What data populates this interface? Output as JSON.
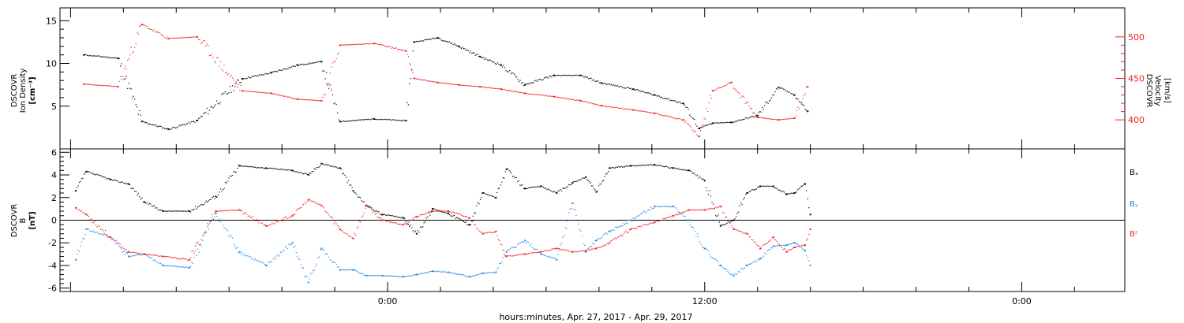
{
  "x_axis": {
    "title": "hours:minutes, Apr. 27, 2017 - Apr. 29, 2017",
    "range_hours": [
      -12.4,
      27.9
    ],
    "tick_labels": [
      {
        "hour": 0,
        "label": "0:00"
      },
      {
        "hour": 12,
        "label": "12:00"
      },
      {
        "hour": 24,
        "label": "0:00"
      }
    ]
  },
  "colors": {
    "black": "#000000",
    "red": "#ee2222",
    "blue": "#1e88e5"
  },
  "chart_data": [
    {
      "type": "scatter",
      "panel": "plasma",
      "left_axis": {
        "label_lines": [
          "DSCOVR",
          "Ion Density",
          "[cm⁻³]"
        ],
        "ylim": [
          0,
          16.5
        ],
        "ticks": [
          5,
          10,
          15
        ]
      },
      "right_axis": {
        "label_lines": [
          "DSCOVR",
          "Velocity",
          "[km/s]"
        ],
        "ylim": [
          365,
          535
        ],
        "ticks": [
          400,
          450,
          500
        ],
        "color": "#ee2222"
      },
      "series": [
        {
          "key": "density",
          "axis": "left",
          "color": "#000000",
          "points": [
            [
              -11.5,
              11
            ],
            [
              -10.2,
              10.6
            ],
            [
              -9.3,
              3.2
            ],
            [
              -8.3,
              2.3
            ],
            [
              -7.2,
              3.3
            ],
            [
              -5.5,
              8.2
            ],
            [
              -4.4,
              8.9
            ],
            [
              -3.4,
              9.8
            ],
            [
              -2.5,
              10.2
            ],
            [
              -1.8,
              3.2
            ],
            [
              -0.5,
              3.5
            ],
            [
              0.7,
              3.3
            ],
            [
              1,
              12.5
            ],
            [
              1.9,
              13
            ],
            [
              2.7,
              12
            ],
            [
              3.5,
              10.8
            ],
            [
              4.3,
              9.8
            ],
            [
              5.2,
              7.5
            ],
            [
              6.3,
              8.6
            ],
            [
              7.3,
              8.6
            ],
            [
              8.1,
              7.7
            ],
            [
              9.3,
              7
            ],
            [
              10.1,
              6.3
            ],
            [
              11.2,
              5.3
            ],
            [
              11.8,
              2.4
            ],
            [
              12.3,
              3
            ],
            [
              13,
              3.1
            ],
            [
              14,
              3.9
            ],
            [
              14.8,
              7.2
            ],
            [
              15.4,
              6.3
            ],
            [
              15.9,
              4.4
            ]
          ]
        },
        {
          "key": "velocity",
          "axis": "right",
          "color": "#ee2222",
          "points": [
            [
              -11.5,
              443
            ],
            [
              -10.2,
              440
            ],
            [
              -9.3,
              515
            ],
            [
              -8.3,
              498
            ],
            [
              -7.2,
              500
            ],
            [
              -5.5,
              435
            ],
            [
              -4.4,
              432
            ],
            [
              -3.4,
              425
            ],
            [
              -2.5,
              423
            ],
            [
              -1.8,
              490
            ],
            [
              -0.5,
              492
            ],
            [
              0.7,
              483
            ],
            [
              1,
              450
            ],
            [
              1.9,
              445
            ],
            [
              2.7,
              442
            ],
            [
              3.5,
              440
            ],
            [
              4.3,
              437
            ],
            [
              5.2,
              432
            ],
            [
              6.3,
              428
            ],
            [
              7.3,
              423
            ],
            [
              8.1,
              417
            ],
            [
              9.3,
              412
            ],
            [
              10.1,
              408
            ],
            [
              11.2,
              400
            ],
            [
              11.8,
              380
            ],
            [
              12.3,
              435
            ],
            [
              13,
              445
            ],
            [
              14,
              403
            ],
            [
              14.8,
              400
            ],
            [
              15.4,
              402
            ],
            [
              15.9,
              440
            ]
          ]
        }
      ]
    },
    {
      "type": "scatter",
      "panel": "magnetic-field",
      "left_axis": {
        "label_lines": [
          "DSCOVR",
          "B",
          "[nT]"
        ],
        "ylim": [
          -6.3,
          6.3
        ],
        "ticks": [
          -6,
          -4,
          -2,
          0,
          2,
          4,
          6
        ]
      },
      "zero_line": true,
      "series": [
        {
          "key": "bx",
          "name": "Bₓ",
          "color": "#000000",
          "points": [
            [
              -11.8,
              2.6
            ],
            [
              -11.4,
              4.3
            ],
            [
              -10.5,
              3.6
            ],
            [
              -9.8,
              3.2
            ],
            [
              -9.2,
              1.6
            ],
            [
              -8.5,
              0.8
            ],
            [
              -7.5,
              0.8
            ],
            [
              -6.5,
              2.1
            ],
            [
              -5.6,
              4.8
            ],
            [
              -4.6,
              4.6
            ],
            [
              -3.6,
              4.4
            ],
            [
              -3,
              4
            ],
            [
              -2.5,
              5
            ],
            [
              -1.8,
              4.6
            ],
            [
              -1.3,
              2.6
            ],
            [
              -0.8,
              1.3
            ],
            [
              -0.2,
              0.5
            ],
            [
              0.6,
              0.2
            ],
            [
              1.1,
              -1.2
            ],
            [
              1.7,
              1
            ],
            [
              2.3,
              0.6
            ],
            [
              3.1,
              -0.4
            ],
            [
              3.6,
              2.4
            ],
            [
              4.1,
              2
            ],
            [
              4.5,
              4.5
            ],
            [
              5.2,
              2.8
            ],
            [
              5.8,
              3
            ],
            [
              6.4,
              2.4
            ],
            [
              7,
              3.3
            ],
            [
              7.5,
              3.8
            ],
            [
              7.9,
              2.5
            ],
            [
              8.4,
              4.6
            ],
            [
              9.2,
              4.8
            ],
            [
              10.1,
              4.9
            ],
            [
              10.8,
              4.6
            ],
            [
              11.4,
              4.4
            ],
            [
              12,
              3.5
            ],
            [
              12.6,
              -0.5
            ],
            [
              13.1,
              0
            ],
            [
              13.6,
              2.4
            ],
            [
              14.1,
              3
            ],
            [
              14.6,
              3
            ],
            [
              15.1,
              2.3
            ],
            [
              15.4,
              2.4
            ],
            [
              15.8,
              3.2
            ],
            [
              16,
              0.5
            ]
          ]
        },
        {
          "key": "by",
          "name": "Bᵧ",
          "color": "#1e88e5",
          "points": [
            [
              -11.8,
              -3.5
            ],
            [
              -11.4,
              -0.8
            ],
            [
              -10.5,
              -1.5
            ],
            [
              -9.8,
              -3.2
            ],
            [
              -9.2,
              -3
            ],
            [
              -8.5,
              -4
            ],
            [
              -7.5,
              -4.2
            ],
            [
              -6.5,
              0.6
            ],
            [
              -5.6,
              -2.8
            ],
            [
              -4.6,
              -4
            ],
            [
              -3.6,
              -2
            ],
            [
              -3,
              -5.5
            ],
            [
              -2.5,
              -2.5
            ],
            [
              -1.8,
              -4.4
            ],
            [
              -1.3,
              -4.4
            ],
            [
              -0.8,
              -4.9
            ],
            [
              -0.2,
              -4.9
            ],
            [
              0.6,
              -5
            ],
            [
              1.1,
              -4.8
            ],
            [
              1.7,
              -4.5
            ],
            [
              2.3,
              -4.6
            ],
            [
              3.1,
              -5
            ],
            [
              3.6,
              -4.7
            ],
            [
              4.1,
              -4.6
            ],
            [
              4.5,
              -2.8
            ],
            [
              5.2,
              -1.8
            ],
            [
              5.8,
              -3
            ],
            [
              6.4,
              -3.5
            ],
            [
              7,
              1.5
            ],
            [
              7.5,
              -2.8
            ],
            [
              7.9,
              -1.8
            ],
            [
              8.4,
              -1
            ],
            [
              9.2,
              0
            ],
            [
              10.1,
              1.2
            ],
            [
              10.8,
              1.2
            ],
            [
              11.4,
              0
            ],
            [
              12,
              -2.5
            ],
            [
              12.6,
              -4
            ],
            [
              13.1,
              -4.9
            ],
            [
              13.6,
              -4
            ],
            [
              14.1,
              -3.4
            ],
            [
              14.6,
              -2.3
            ],
            [
              15.1,
              -2.2
            ],
            [
              15.4,
              -2
            ],
            [
              15.8,
              -2.7
            ],
            [
              16,
              -4
            ]
          ]
        },
        {
          "key": "bz",
          "name": "Bᶻ",
          "color": "#ee2222",
          "points": [
            [
              -11.8,
              1.1
            ],
            [
              -11.4,
              0.5
            ],
            [
              -10.5,
              -1.5
            ],
            [
              -9.8,
              -2.8
            ],
            [
              -9.2,
              -3
            ],
            [
              -8.5,
              -3.2
            ],
            [
              -7.5,
              -3.5
            ],
            [
              -6.5,
              0.8
            ],
            [
              -5.6,
              0.9
            ],
            [
              -4.6,
              -0.5
            ],
            [
              -3.6,
              0.4
            ],
            [
              -3,
              1.8
            ],
            [
              -2.5,
              1.3
            ],
            [
              -1.8,
              -0.8
            ],
            [
              -1.3,
              -1.6
            ],
            [
              -0.8,
              1.3
            ],
            [
              -0.2,
              0
            ],
            [
              0.6,
              -0.4
            ],
            [
              1.1,
              0.3
            ],
            [
              1.7,
              0.8
            ],
            [
              2.3,
              0.8
            ],
            [
              3.1,
              0.2
            ],
            [
              3.6,
              -1.2
            ],
            [
              4.1,
              -1
            ],
            [
              4.5,
              -3.2
            ],
            [
              5.2,
              -3
            ],
            [
              5.8,
              -2.8
            ],
            [
              6.4,
              -2.5
            ],
            [
              7,
              -2.8
            ],
            [
              7.5,
              -2.7
            ],
            [
              7.9,
              -2.5
            ],
            [
              8.4,
              -2
            ],
            [
              9.2,
              -0.8
            ],
            [
              10.1,
              -0.2
            ],
            [
              10.8,
              0.4
            ],
            [
              11.4,
              0.9
            ],
            [
              12,
              0.9
            ],
            [
              12.6,
              1.2
            ],
            [
              13.1,
              -0.8
            ],
            [
              13.6,
              -1.2
            ],
            [
              14.1,
              -2.5
            ],
            [
              14.6,
              -1.5
            ],
            [
              15.1,
              -2.8
            ],
            [
              15.4,
              -2.4
            ],
            [
              15.8,
              -2.2
            ],
            [
              16,
              -0.8
            ]
          ]
        }
      ],
      "legend": [
        "Bₓ",
        "Bᵧ",
        "Bᶻ"
      ]
    }
  ]
}
